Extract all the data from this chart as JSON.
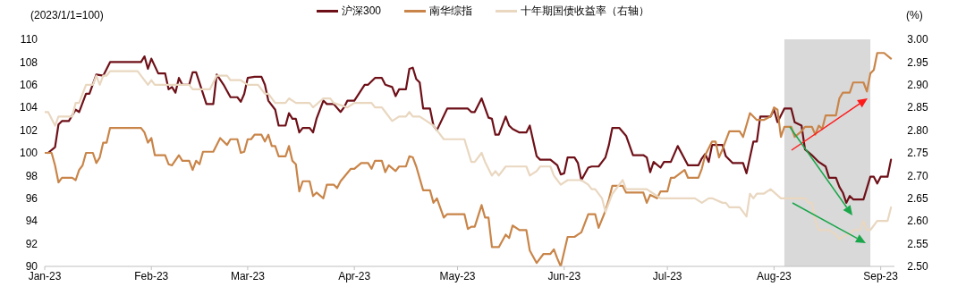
{
  "chart_data": {
    "type": "line",
    "ylabel": "(2023/1/1=100)",
    "y2label": "(%)",
    "legend": "top",
    "marker": "none",
    "line_style": "solid",
    "xlim": [
      "2023-01-01",
      "2023-09-05"
    ],
    "xticks": [
      {
        "value": "2023-01-01",
        "label": "Jan-23"
      },
      {
        "value": "2023-02-01",
        "label": "Feb-23"
      },
      {
        "value": "2023-03-01",
        "label": "Mar-23"
      },
      {
        "value": "2023-04-01",
        "label": "Apr-23"
      },
      {
        "value": "2023-05-01",
        "label": "May-23"
      },
      {
        "value": "2023-06-01",
        "label": "Jun-23"
      },
      {
        "value": "2023-07-01",
        "label": "Jul-23"
      },
      {
        "value": "2023-08-01",
        "label": "Aug-23"
      },
      {
        "value": "2023-09-01",
        "label": "Sep-23"
      }
    ],
    "ylim": [
      90,
      110
    ],
    "yticks": [
      90,
      92,
      94,
      96,
      98,
      100,
      102,
      104,
      106,
      108,
      110
    ],
    "y2lim": [
      2.5,
      3.0
    ],
    "y2ticks": [
      {
        "value": 2.5,
        "label": "2.50"
      },
      {
        "value": 2.55,
        "label": "2.55"
      },
      {
        "value": 2.6,
        "label": "2.60"
      },
      {
        "value": 2.65,
        "label": "2.65"
      },
      {
        "value": 2.7,
        "label": "2.70"
      },
      {
        "value": 2.75,
        "label": "2.75"
      },
      {
        "value": 2.8,
        "label": "2.80"
      },
      {
        "value": 2.85,
        "label": "2.85"
      },
      {
        "value": 2.9,
        "label": "2.90"
      },
      {
        "value": 2.95,
        "label": "2.95"
      },
      {
        "value": 3.0,
        "label": "3.00"
      }
    ],
    "bands": [
      {
        "axis": "x",
        "from": "2023-08-04",
        "to": "2023-08-29",
        "color": "#d9d9d9"
      }
    ],
    "series": [
      {
        "name": "沪深300",
        "color": "#6e1018",
        "x": [
          "2023-01-02",
          "2023-01-04",
          "2023-01-05",
          "2023-01-06",
          "2023-01-08",
          "2023-01-10",
          "2023-01-11",
          "2023-01-13",
          "2023-01-14",
          "2023-01-16",
          "2023-01-18",
          "2023-01-20",
          "2023-01-29",
          "2023-01-30",
          "2023-01-31",
          "2023-02-01",
          "2023-02-03",
          "2023-02-05",
          "2023-02-06",
          "2023-02-07",
          "2023-02-08",
          "2023-02-09",
          "2023-02-10",
          "2023-02-12",
          "2023-02-13",
          "2023-02-14",
          "2023-02-17",
          "2023-02-19",
          "2023-02-20",
          "2023-02-22",
          "2023-02-24",
          "2023-02-26",
          "2023-02-27",
          "2023-02-28",
          "2023-03-01",
          "2023-03-03",
          "2023-03-05",
          "2023-03-06",
          "2023-03-07",
          "2023-03-09",
          "2023-03-10",
          "2023-03-12",
          "2023-03-13",
          "2023-03-14",
          "2023-03-15",
          "2023-03-16",
          "2023-03-17",
          "2023-03-19",
          "2023-03-20",
          "2023-03-21",
          "2023-03-23",
          "2023-03-24",
          "2023-03-26",
          "2023-03-28",
          "2023-03-29",
          "2023-03-30",
          "2023-04-01",
          "2023-04-04",
          "2023-04-05",
          "2023-04-07",
          "2023-04-09",
          "2023-04-10",
          "2023-04-12",
          "2023-04-13",
          "2023-04-14",
          "2023-04-16",
          "2023-04-17",
          "2023-04-18",
          "2023-04-19",
          "2023-04-20",
          "2023-04-21",
          "2023-04-23",
          "2023-04-24",
          "2023-04-25",
          "2023-04-28",
          "2023-05-04",
          "2023-05-05",
          "2023-05-06",
          "2023-05-08",
          "2023-05-10",
          "2023-05-11",
          "2023-05-12",
          "2023-05-13",
          "2023-05-15",
          "2023-05-16",
          "2023-05-17",
          "2023-05-19",
          "2023-05-21",
          "2023-05-22",
          "2023-05-24",
          "2023-05-25",
          "2023-05-28",
          "2023-05-30",
          "2023-05-31",
          "2023-06-01",
          "2023-06-02",
          "2023-06-04",
          "2023-06-05",
          "2023-06-06",
          "2023-06-08",
          "2023-06-09",
          "2023-06-11",
          "2023-06-12",
          "2023-06-13",
          "2023-06-14",
          "2023-06-15",
          "2023-06-17",
          "2023-06-19",
          "2023-06-21",
          "2023-06-24",
          "2023-06-25",
          "2023-06-26",
          "2023-06-27",
          "2023-06-29",
          "2023-06-30",
          "2023-07-02",
          "2023-07-04",
          "2023-07-07",
          "2023-07-10",
          "2023-07-11",
          "2023-07-12",
          "2023-07-13",
          "2023-07-14",
          "2023-07-17",
          "2023-07-18",
          "2023-07-20",
          "2023-07-23",
          "2023-07-24",
          "2023-07-26",
          "2023-07-27",
          "2023-07-28",
          "2023-07-31",
          "2023-08-01",
          "2023-08-02",
          "2023-08-04",
          "2023-08-06",
          "2023-08-07",
          "2023-08-09",
          "2023-08-10",
          "2023-08-12",
          "2023-08-14",
          "2023-08-16",
          "2023-08-17",
          "2023-08-19",
          "2023-08-20",
          "2023-08-21",
          "2023-08-22",
          "2023-08-23",
          "2023-08-24",
          "2023-08-27",
          "2023-08-29",
          "2023-08-30",
          "2023-08-31",
          "2023-09-01",
          "2023-09-03",
          "2023-09-04"
        ],
        "values": [
          100.0,
          100.5,
          102.5,
          102.8,
          102.8,
          103.8,
          103.6,
          105.2,
          105.2,
          106.9,
          106.8,
          108.0,
          108.0,
          108.5,
          107.4,
          108.3,
          107.0,
          107.0,
          105.6,
          105.8,
          105.3,
          106.6,
          106.0,
          106.0,
          107.1,
          107.1,
          104.3,
          104.3,
          106.9,
          106.0,
          104.9,
          104.9,
          104.5,
          105.2,
          106.6,
          106.7,
          106.7,
          106.0,
          104.6,
          103.8,
          102.4,
          102.4,
          103.5,
          103.0,
          103.0,
          101.8,
          102.2,
          102.2,
          101.8,
          103.0,
          104.6,
          104.3,
          104.3,
          103.6,
          104.0,
          104.6,
          104.6,
          106.0,
          106.0,
          106.6,
          106.6,
          106.0,
          105.8,
          105.0,
          105.6,
          105.6,
          107.4,
          107.5,
          106.5,
          106.2,
          103.9,
          103.9,
          102.4,
          102.0,
          103.9,
          103.9,
          103.6,
          103.6,
          104.8,
          103.1,
          103.0,
          101.6,
          101.6,
          103.2,
          102.4,
          102.1,
          101.8,
          101.8,
          102.4,
          99.7,
          99.4,
          99.4,
          98.9,
          98.1,
          98.2,
          99.6,
          99.6,
          99.1,
          97.6,
          98.7,
          98.8,
          98.8,
          99.2,
          99.6,
          100.7,
          102.2,
          102.2,
          101.5,
          99.8,
          99.8,
          99.6,
          98.3,
          99.2,
          98.7,
          99.2,
          99.2,
          100.6,
          98.9,
          98.9,
          99.5,
          99.9,
          99.2,
          100.7,
          100.7,
          99.7,
          99.1,
          99.1,
          98.2,
          101.0,
          101.0,
          103.2,
          103.2,
          103.8,
          102.7,
          103.9,
          103.9,
          102.7,
          102.4,
          100.3,
          99.8,
          99.2,
          98.8,
          97.8,
          97.8,
          97.0,
          96.5,
          95.6,
          96.2,
          95.9,
          95.9,
          97.9,
          97.9,
          97.3,
          97.9,
          97.9,
          99.4
        ]
      },
      {
        "name": "南华综指",
        "color": "#c98549",
        "x": [
          "2023-01-01",
          "2023-01-03",
          "2023-01-04",
          "2023-01-05",
          "2023-01-06",
          "2023-01-09",
          "2023-01-10",
          "2023-01-11",
          "2023-01-12",
          "2023-01-13",
          "2023-01-15",
          "2023-01-16",
          "2023-01-17",
          "2023-01-18",
          "2023-01-19",
          "2023-01-20",
          "2023-01-29",
          "2023-01-30",
          "2023-01-31",
          "2023-02-01",
          "2023-02-02",
          "2023-02-05",
          "2023-02-06",
          "2023-02-07",
          "2023-02-09",
          "2023-02-10",
          "2023-02-12",
          "2023-02-13",
          "2023-02-14",
          "2023-02-15",
          "2023-02-16",
          "2023-02-19",
          "2023-02-21",
          "2023-02-23",
          "2023-02-24",
          "2023-02-26",
          "2023-02-27",
          "2023-02-28",
          "2023-03-01",
          "2023-03-02",
          "2023-03-03",
          "2023-03-05",
          "2023-03-06",
          "2023-03-07",
          "2023-03-08",
          "2023-03-09",
          "2023-03-10",
          "2023-03-12",
          "2023-03-13",
          "2023-03-14",
          "2023-03-15",
          "2023-03-16",
          "2023-03-17",
          "2023-03-19",
          "2023-03-20",
          "2023-03-21",
          "2023-03-23",
          "2023-03-24",
          "2023-03-26",
          "2023-03-27",
          "2023-03-28",
          "2023-03-31",
          "2023-04-01",
          "2023-04-03",
          "2023-04-05",
          "2023-04-06",
          "2023-04-07",
          "2023-04-09",
          "2023-04-10",
          "2023-04-11",
          "2023-04-13",
          "2023-04-14",
          "2023-04-16",
          "2023-04-17",
          "2023-04-18",
          "2023-04-19",
          "2023-04-21",
          "2023-04-23",
          "2023-04-24",
          "2023-04-25",
          "2023-04-27",
          "2023-04-28",
          "2023-05-03",
          "2023-05-04",
          "2023-05-05",
          "2023-05-06",
          "2023-05-08",
          "2023-05-09",
          "2023-05-10",
          "2023-05-11",
          "2023-05-13",
          "2023-05-15",
          "2023-05-16",
          "2023-05-17",
          "2023-05-19",
          "2023-05-21",
          "2023-05-22",
          "2023-05-24",
          "2023-05-26",
          "2023-05-28",
          "2023-05-29",
          "2023-05-30",
          "2023-05-31",
          "2023-06-02",
          "2023-06-04",
          "2023-06-05",
          "2023-06-06",
          "2023-06-08",
          "2023-06-10",
          "2023-06-11",
          "2023-06-13",
          "2023-06-14",
          "2023-06-15",
          "2023-06-18",
          "2023-06-19",
          "2023-06-24",
          "2023-06-25",
          "2023-06-26",
          "2023-06-28",
          "2023-06-29",
          "2023-07-01",
          "2023-07-02",
          "2023-07-03",
          "2023-07-06",
          "2023-07-07",
          "2023-07-10",
          "2023-07-11",
          "2023-07-12",
          "2023-07-14",
          "2023-07-15",
          "2023-07-16",
          "2023-07-17",
          "2023-07-19",
          "2023-07-22",
          "2023-07-23",
          "2023-07-25",
          "2023-07-27",
          "2023-07-29",
          "2023-07-31",
          "2023-08-01",
          "2023-08-02",
          "2023-08-03",
          "2023-08-04",
          "2023-08-06",
          "2023-08-07",
          "2023-08-09",
          "2023-08-10",
          "2023-08-12",
          "2023-08-13",
          "2023-08-14",
          "2023-08-15",
          "2023-08-16",
          "2023-08-19",
          "2023-08-20",
          "2023-08-21",
          "2023-08-23",
          "2023-08-24",
          "2023-08-27",
          "2023-08-28",
          "2023-08-29",
          "2023-08-30",
          "2023-08-31",
          "2023-09-02",
          "2023-09-04"
        ],
        "values": [
          100.0,
          100.0,
          98.9,
          97.4,
          97.8,
          97.8,
          97.6,
          98.5,
          98.9,
          100.0,
          100.0,
          99.1,
          99.6,
          100.9,
          100.9,
          102.2,
          102.2,
          101.8,
          100.9,
          101.3,
          99.8,
          99.8,
          99.0,
          98.9,
          99.8,
          99.3,
          99.3,
          98.5,
          99.3,
          99.0,
          100.1,
          100.1,
          101.3,
          100.7,
          101.2,
          101.2,
          100.0,
          100.1,
          101.2,
          101.2,
          101.6,
          101.6,
          101.0,
          101.6,
          100.6,
          100.6,
          99.7,
          99.7,
          100.6,
          99.3,
          99.0,
          96.6,
          97.5,
          97.5,
          96.2,
          96.5,
          96.0,
          97.2,
          97.2,
          96.9,
          97.5,
          98.6,
          98.6,
          99.1,
          99.1,
          98.6,
          99.3,
          99.3,
          98.3,
          98.9,
          98.4,
          98.8,
          98.8,
          99.7,
          99.6,
          98.8,
          96.7,
          96.7,
          95.6,
          96.0,
          94.3,
          94.6,
          94.6,
          93.3,
          93.5,
          93.5,
          95.4,
          94.3,
          94.3,
          91.7,
          91.7,
          92.8,
          92.5,
          93.6,
          93.2,
          93.2,
          91.4,
          90.3,
          91.1,
          91.1,
          91.5,
          90.7,
          90.0,
          92.6,
          92.6,
          92.8,
          93.0,
          94.6,
          94.6,
          93.4,
          94.9,
          95.9,
          97.1,
          97.1,
          96.5,
          96.5,
          95.6,
          96.3,
          96.0,
          96.6,
          96.6,
          97.8,
          97.8,
          98.5,
          97.8,
          97.8,
          98.6,
          99.8,
          101.0,
          101.0,
          99.6,
          100.3,
          101.9,
          101.9,
          101.4,
          103.5,
          102.9,
          102.9,
          103.2,
          104.0,
          103.8,
          101.4,
          102.3,
          102.3,
          101.4,
          101.9,
          102.3,
          102.3,
          101.6,
          102.4,
          102.1,
          103.3,
          103.3,
          104.8,
          105.3,
          105.3,
          106.2,
          106.2,
          105.4,
          107.0,
          107.3,
          108.8,
          108.8,
          108.3
        ]
      },
      {
        "name": "十年期国债收益率（右轴）",
        "color": "#e9d7c0",
        "axis": "y2",
        "x": [
          "2023-01-01",
          "2023-01-02",
          "2023-01-04",
          "2023-01-05",
          "2023-01-09",
          "2023-01-10",
          "2023-01-11",
          "2023-01-13",
          "2023-01-15",
          "2023-01-16",
          "2023-01-17",
          "2023-01-18",
          "2023-01-19",
          "2023-01-20",
          "2023-01-28",
          "2023-01-31",
          "2023-02-01",
          "2023-02-02",
          "2023-02-06",
          "2023-02-12",
          "2023-02-13",
          "2023-02-18",
          "2023-02-20",
          "2023-02-23",
          "2023-02-24",
          "2023-02-27",
          "2023-03-01",
          "2023-03-04",
          "2023-03-06",
          "2023-03-07",
          "2023-03-09",
          "2023-03-12",
          "2023-03-13",
          "2023-03-15",
          "2023-03-19",
          "2023-03-20",
          "2023-03-23",
          "2023-03-25",
          "2023-03-26",
          "2023-03-30",
          "2023-04-01",
          "2023-04-06",
          "2023-04-07",
          "2023-04-09",
          "2023-04-10",
          "2023-04-12",
          "2023-04-14",
          "2023-04-16",
          "2023-04-17",
          "2023-04-18",
          "2023-04-19",
          "2023-04-20",
          "2023-04-22",
          "2023-04-24",
          "2023-04-25",
          "2023-04-27",
          "2023-05-03",
          "2023-05-05",
          "2023-05-06",
          "2023-05-08",
          "2023-05-09",
          "2023-05-11",
          "2023-05-12",
          "2023-05-13",
          "2023-05-15",
          "2023-05-16",
          "2023-05-21",
          "2023-05-22",
          "2023-05-24",
          "2023-05-25",
          "2023-05-28",
          "2023-05-29",
          "2023-05-30",
          "2023-05-31",
          "2023-06-02",
          "2023-06-04",
          "2023-06-06",
          "2023-06-08",
          "2023-06-09",
          "2023-06-10",
          "2023-06-12",
          "2023-06-13",
          "2023-06-14",
          "2023-06-15",
          "2023-06-18",
          "2023-06-19",
          "2023-06-23",
          "2023-06-25",
          "2023-06-27",
          "2023-06-29",
          "2023-06-30",
          "2023-07-03",
          "2023-07-09",
          "2023-07-11",
          "2023-07-13",
          "2023-07-14",
          "2023-07-17",
          "2023-07-18",
          "2023-07-19",
          "2023-07-22",
          "2023-07-24",
          "2023-07-25",
          "2023-07-26",
          "2023-07-27",
          "2023-07-29",
          "2023-07-31",
          "2023-08-03",
          "2023-08-10",
          "2023-08-11",
          "2023-08-12",
          "2023-08-13",
          "2023-08-14",
          "2023-08-17",
          "2023-08-19",
          "2023-08-20",
          "2023-08-22",
          "2023-08-23",
          "2023-08-24",
          "2023-08-26",
          "2023-08-27",
          "2023-08-28",
          "2023-08-29",
          "2023-08-30",
          "2023-08-31",
          "2023-09-03",
          "2023-09-04"
        ],
        "values": [
          2.84,
          2.84,
          2.81,
          2.83,
          2.83,
          2.86,
          2.86,
          2.9,
          2.9,
          2.92,
          2.9,
          2.92,
          2.92,
          2.93,
          2.93,
          2.9,
          2.91,
          2.9,
          2.9,
          2.9,
          2.89,
          2.89,
          2.92,
          2.92,
          2.91,
          2.91,
          2.9,
          2.9,
          2.88,
          2.88,
          2.86,
          2.86,
          2.87,
          2.86,
          2.86,
          2.85,
          2.87,
          2.87,
          2.86,
          2.85,
          2.86,
          2.86,
          2.85,
          2.85,
          2.84,
          2.82,
          2.83,
          2.83,
          2.84,
          2.83,
          2.83,
          2.83,
          2.82,
          2.81,
          2.8,
          2.78,
          2.78,
          2.73,
          2.73,
          2.75,
          2.73,
          2.7,
          2.71,
          2.7,
          2.72,
          2.72,
          2.72,
          2.7,
          2.71,
          2.72,
          2.72,
          2.7,
          2.69,
          2.68,
          2.69,
          2.69,
          2.69,
          2.68,
          2.67,
          2.67,
          2.65,
          2.62,
          2.64,
          2.66,
          2.69,
          2.67,
          2.67,
          2.67,
          2.66,
          2.65,
          2.65,
          2.65,
          2.65,
          2.64,
          2.65,
          2.65,
          2.64,
          2.64,
          2.63,
          2.63,
          2.61,
          2.66,
          2.65,
          2.66,
          2.66,
          2.67,
          2.65,
          2.65,
          2.64,
          2.64,
          2.6,
          2.58,
          2.58,
          2.57,
          2.56,
          2.57,
          2.57,
          2.58,
          2.58,
          2.6,
          2.58,
          2.58,
          2.59,
          2.6,
          2.6,
          2.63
        ]
      }
    ]
  }
}
